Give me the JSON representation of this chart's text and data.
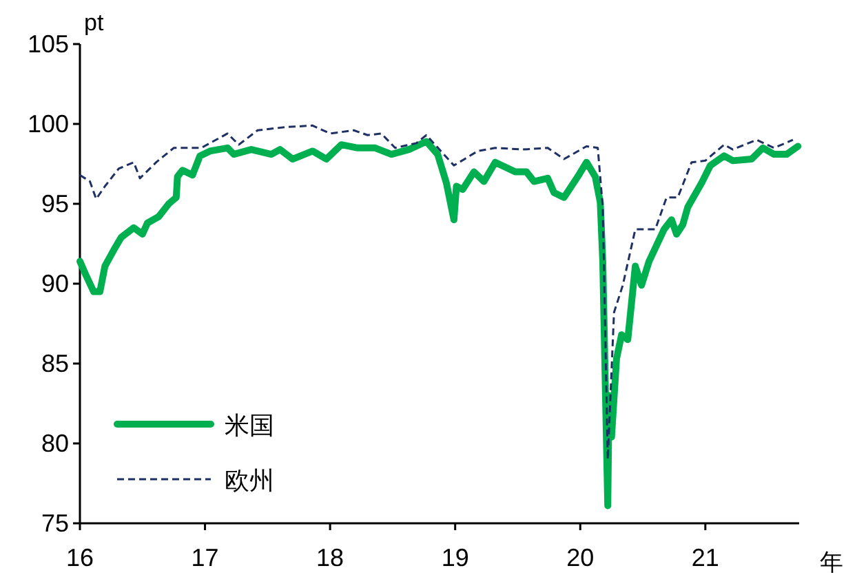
{
  "chart_data": {
    "type": "line",
    "xlabel": "年",
    "ylabel": "pt",
    "xlim": [
      16,
      21.75
    ],
    "ylim": [
      75,
      105
    ],
    "xticks": [
      16,
      17,
      18,
      19,
      20,
      21
    ],
    "yticks": [
      75,
      80,
      85,
      90,
      95,
      100,
      105
    ],
    "grid": false,
    "legend": "bottom left",
    "marker": "none",
    "series": [
      {
        "name": "米国",
        "color": "#00b050",
        "line_style": "solid",
        "x": [
          16,
          16.05,
          16.11,
          16.16,
          16.2,
          16.27,
          16.33,
          16.43,
          16.5,
          16.54,
          16.63,
          16.71,
          16.77,
          16.78,
          16.82,
          16.9,
          16.96,
          17.04,
          17.18,
          17.23,
          17.37,
          17.53,
          17.6,
          17.7,
          17.86,
          17.97,
          18.09,
          18.22,
          18.36,
          18.49,
          18.63,
          18.77,
          18.86,
          18.93,
          18.99,
          19.01,
          19.06,
          19.15,
          19.23,
          19.32,
          19.48,
          19.57,
          19.63,
          19.74,
          19.79,
          19.87,
          19.98,
          20.05,
          20.12,
          20.16,
          20.18,
          20.22,
          20.23,
          20.25,
          20.29,
          20.33,
          20.38,
          20.44,
          20.49,
          20.55,
          20.67,
          20.73,
          20.77,
          20.82,
          20.86,
          20.97,
          21.04,
          21.15,
          21.22,
          21.37,
          21.46,
          21.55,
          21.65,
          21.74
        ],
        "values": [
          91.4,
          90.5,
          89.5,
          89.5,
          91.1,
          92.1,
          92.9,
          93.5,
          93.1,
          93.8,
          94.2,
          95.0,
          95.4,
          96.7,
          97.1,
          96.8,
          98.0,
          98.3,
          98.5,
          98.1,
          98.4,
          98.1,
          98.4,
          97.8,
          98.3,
          97.8,
          98.7,
          98.5,
          98.5,
          98.1,
          98.4,
          98.9,
          98.1,
          96.3,
          94.0,
          96.1,
          95.9,
          97.0,
          96.4,
          97.6,
          97.0,
          97.0,
          96.4,
          96.6,
          95.7,
          95.4,
          96.7,
          97.6,
          96.7,
          95.1,
          91.4,
          76.1,
          83.0,
          80.4,
          85.3,
          86.8,
          86.5,
          91.1,
          89.9,
          91.4,
          93.4,
          94.0,
          93.1,
          93.7,
          94.8,
          96.3,
          97.4,
          98.0,
          97.7,
          97.8,
          98.5,
          98.1,
          98.1,
          98.6
        ]
      },
      {
        "name": "欧州",
        "color": "#1f3064",
        "line_style": "dashed",
        "x": [
          16,
          16.08,
          16.13,
          16.2,
          16.31,
          16.43,
          16.48,
          16.61,
          16.75,
          16.97,
          17.18,
          17.27,
          17.42,
          17.64,
          17.86,
          18.0,
          18.19,
          18.3,
          18.41,
          18.52,
          18.69,
          18.77,
          18.99,
          19.18,
          19.32,
          19.54,
          19.74,
          19.87,
          20.05,
          20.14,
          20.18,
          20.22,
          20.27,
          20.34,
          20.44,
          20.6,
          20.69,
          20.78,
          20.89,
          21.0,
          21.15,
          21.22,
          21.41,
          21.55,
          21.7
        ],
        "values": [
          96.8,
          96.4,
          95.3,
          96.1,
          97.2,
          97.6,
          96.6,
          97.6,
          98.5,
          98.5,
          99.4,
          98.7,
          99.6,
          99.8,
          99.9,
          99.4,
          99.6,
          99.3,
          99.4,
          98.5,
          98.8,
          99.3,
          97.4,
          98.3,
          98.5,
          98.4,
          98.5,
          97.8,
          98.6,
          98.5,
          94.8,
          79.0,
          88.2,
          89.9,
          93.4,
          93.4,
          95.4,
          95.4,
          97.6,
          97.7,
          98.7,
          98.4,
          99.0,
          98.5,
          99.0
        ]
      }
    ]
  }
}
